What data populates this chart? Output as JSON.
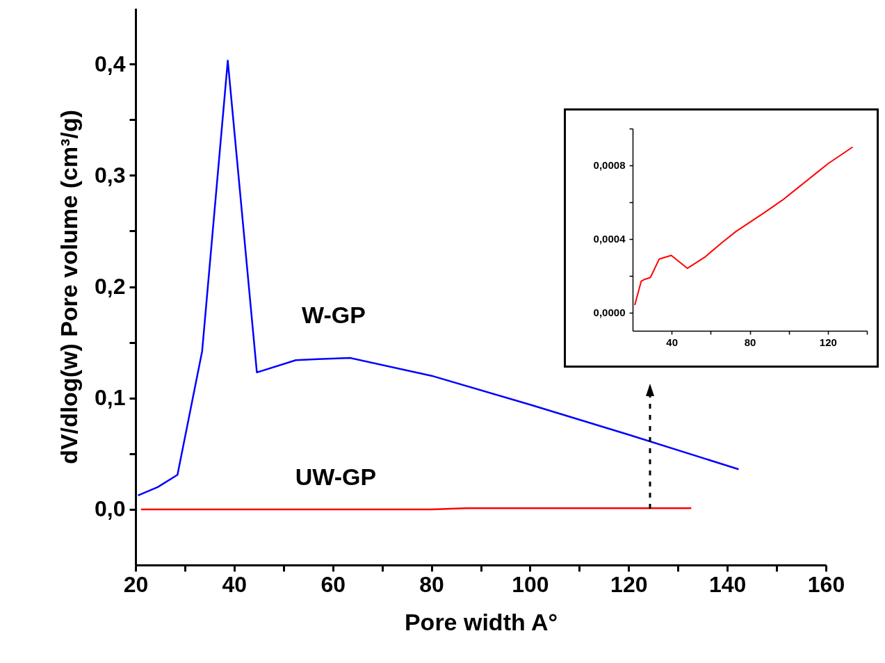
{
  "chart_data": [
    {
      "type": "line",
      "xlabel": "Pore width A°",
      "ylabel": "dV/dlog(w) Pore volume (cm³/g)",
      "grid": false,
      "marker": "none",
      "line_style": "solid",
      "xlim": [
        20,
        160
      ],
      "xticks": [
        20,
        {
          "value": 30,
          "label": null
        },
        40,
        {
          "value": 50,
          "label": null
        },
        60,
        {
          "value": 70,
          "label": null
        },
        80,
        {
          "value": 90,
          "label": null
        },
        100,
        {
          "value": 110,
          "label": null
        },
        120,
        {
          "value": 130,
          "label": null
        },
        140,
        {
          "value": 150,
          "label": null
        },
        160
      ],
      "ylim": [
        -0.05,
        0.45
      ],
      "yticks": [
        {
          "value": 0,
          "label": "0,0"
        },
        {
          "value": 0.05,
          "label": null
        },
        {
          "value": 0.1,
          "label": "0,1"
        },
        {
          "value": 0.15,
          "label": null
        },
        {
          "value": 0.2,
          "label": "0,2"
        },
        {
          "value": 0.25,
          "label": null
        },
        {
          "value": 0.3,
          "label": "0,3"
        },
        {
          "value": 0.35,
          "label": null
        },
        {
          "value": 0.4,
          "label": "0,4"
        }
      ],
      "series": [
        {
          "name": "W-GP",
          "color": "#0000ff",
          "x": [
            20.5,
            24.5,
            28.5,
            33.5,
            38.7,
            44.6,
            52.5,
            57,
            63.5,
            80,
            100,
            120,
            142.3
          ],
          "values": [
            0.0125,
            0.02,
            0.031,
            0.142,
            0.403,
            0.123,
            0.134,
            0.135,
            0.136,
            0.12,
            0.094,
            0.067,
            0.036
          ]
        },
        {
          "name": "UW-GP",
          "color": "#ff0000",
          "x": [
            21.1,
            24.4,
            26.2,
            29.1,
            33.6,
            39.8,
            48.0,
            56.9,
            65.8,
            72.9,
            80.0,
            87.1,
            96.6,
            104.9,
            113.1,
            120.2,
            132.7
          ],
          "values": [
            0,
            0,
            0,
            0,
            0,
            0,
            0,
            0,
            0,
            0,
            0,
            0.001,
            0.001,
            0.001,
            0.001,
            0.001,
            0.001
          ]
        }
      ]
    },
    {
      "type": "line",
      "grid": false,
      "marker": "none",
      "line_style": "solid",
      "xlim": [
        20,
        140
      ],
      "xticks": [
        40,
        {
          "value": 60,
          "label": null
        },
        80,
        {
          "value": 100,
          "label": null
        },
        120,
        {
          "value": 140,
          "label": null
        }
      ],
      "ylim": [
        -0.0001,
        0.001
      ],
      "yticks": [
        {
          "value": 0,
          "label": "0,0000"
        },
        {
          "value": 0.0002,
          "label": null
        },
        {
          "value": 0.0004,
          "label": "0,0004"
        },
        {
          "value": 0.0006,
          "label": null
        },
        {
          "value": 0.0008,
          "label": "0,0008"
        },
        {
          "value": 0.001,
          "label": null
        }
      ],
      "series": [
        {
          "color": "#ff0000",
          "x": [
            21.1,
            24.4,
            26.2,
            29.1,
            33.6,
            39.8,
            48.0,
            56.9,
            65.8,
            72.9,
            80.0,
            87.1,
            96.6,
            104.9,
            113.1,
            120.2,
            132.7
          ],
          "values": [
            4e-05,
            0.00017,
            0.00018,
            0.00019,
            0.00029,
            0.00031,
            0.00024,
            0.0003,
            0.00038,
            0.00044,
            0.00049,
            0.00054,
            0.00061,
            0.00068,
            0.00075,
            0.00081,
            0.0009
          ]
        }
      ]
    }
  ]
}
